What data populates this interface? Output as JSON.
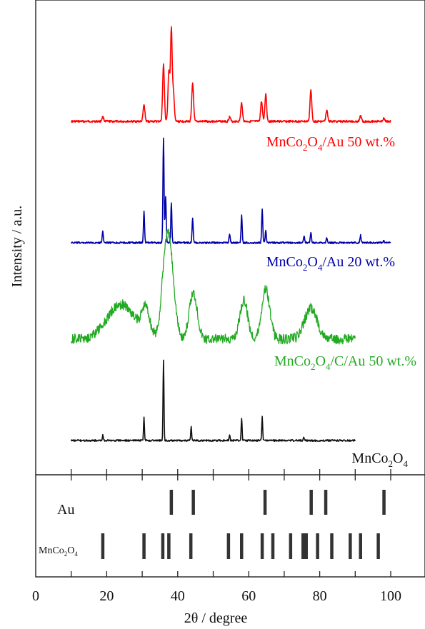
{
  "chart_data": {
    "type": "line",
    "title": "",
    "xlabel": "2θ / degree",
    "ylabel": "Intensity / a.u.",
    "xlim": [
      0,
      105
    ],
    "x_ticks": [
      "0",
      "20",
      "40",
      "60",
      "80",
      "100"
    ],
    "x_tick_values": [
      0,
      20,
      40,
      60,
      80,
      100
    ],
    "minor_tick_values": [
      10,
      20,
      30,
      40,
      50,
      60,
      70,
      80,
      90,
      100
    ],
    "series": [
      {
        "name": "MnCo2O4/Au 50 wt.%",
        "label_parts": [
          [
            "MnCo",
            "n"
          ],
          [
            "2",
            "s"
          ],
          [
            "O",
            "n"
          ],
          [
            "4",
            "s"
          ],
          [
            "/Au 50 wt.%",
            "n"
          ]
        ],
        "color": "#ff0000",
        "x_range": [
          10,
          100
        ],
        "peaks": [
          [
            18.9,
            0.05
          ],
          [
            30.5,
            0.18
          ],
          [
            36.0,
            0.62
          ],
          [
            37.5,
            0.55
          ],
          [
            38.2,
            1.0
          ],
          [
            38.8,
            0.3
          ],
          [
            44.2,
            0.42
          ],
          [
            54.6,
            0.05
          ],
          [
            58.0,
            0.2
          ],
          [
            63.6,
            0.22
          ],
          [
            64.8,
            0.3
          ],
          [
            77.5,
            0.34
          ],
          [
            82.0,
            0.12
          ],
          [
            91.5,
            0.06
          ],
          [
            98.0,
            0.03
          ]
        ]
      },
      {
        "name": "MnCo2O4/Au 20 wt.%",
        "label_parts": [
          [
            "MnCo",
            "n"
          ],
          [
            "2",
            "s"
          ],
          [
            "O",
            "n"
          ],
          [
            "4",
            "s"
          ],
          [
            "/Au 20 wt.%",
            "n"
          ]
        ],
        "color": "#0000aa",
        "x_range": [
          10,
          100
        ],
        "peaks": [
          [
            18.9,
            0.11
          ],
          [
            30.5,
            0.3
          ],
          [
            36.0,
            1.0
          ],
          [
            36.6,
            0.45
          ],
          [
            38.2,
            0.38
          ],
          [
            44.2,
            0.23
          ],
          [
            54.6,
            0.09
          ],
          [
            58.0,
            0.26
          ],
          [
            63.8,
            0.32
          ],
          [
            64.8,
            0.12
          ],
          [
            75.6,
            0.07
          ],
          [
            77.5,
            0.1
          ],
          [
            82.0,
            0.05
          ],
          [
            91.5,
            0.07
          ],
          [
            98.0,
            0.02
          ]
        ]
      },
      {
        "name": "MnCo2O4/C/Au 50 wt.%",
        "label_parts": [
          [
            "MnCo",
            "n"
          ],
          [
            "2",
            "s"
          ],
          [
            "O",
            "n"
          ],
          [
            "4",
            "s"
          ],
          [
            "/C/Au 50 wt.%",
            "n"
          ]
        ],
        "color": "#22aa22",
        "x_range": [
          10,
          90
        ],
        "peaks": [
          [
            24.0,
            0.45
          ],
          [
            31.0,
            0.35
          ],
          [
            36.6,
            1.0
          ],
          [
            38.2,
            0.75
          ],
          [
            44.4,
            0.6
          ],
          [
            58.6,
            0.5
          ],
          [
            64.8,
            0.66
          ],
          [
            77.5,
            0.4
          ]
        ]
      },
      {
        "name": "MnCo2O4",
        "label_parts": [
          [
            "MnCo",
            "n"
          ],
          [
            "2",
            "s"
          ],
          [
            "O",
            "n"
          ],
          [
            "4",
            "s"
          ]
        ],
        "color": "#111111",
        "x_range": [
          10,
          90
        ],
        "peaks": [
          [
            18.9,
            0.07
          ],
          [
            30.5,
            0.28
          ],
          [
            36.0,
            1.0
          ],
          [
            43.8,
            0.17
          ],
          [
            54.6,
            0.07
          ],
          [
            58.0,
            0.28
          ],
          [
            63.8,
            0.3
          ],
          [
            75.5,
            0.04
          ]
        ]
      }
    ],
    "reference_sets": [
      {
        "name": "Au",
        "label_parts": [
          [
            "Au",
            "n"
          ]
        ],
        "positions": [
          38.2,
          44.4,
          64.6,
          77.6,
          81.7,
          98.1
        ]
      },
      {
        "name": "MnCo2O4",
        "label_parts": [
          [
            "MnCo",
            "n"
          ],
          [
            "2",
            "s"
          ],
          [
            "O",
            "n"
          ],
          [
            "4",
            "s"
          ]
        ],
        "positions": [
          18.9,
          30.5,
          35.8,
          37.5,
          43.7,
          54.3,
          58.0,
          63.8,
          66.8,
          71.8,
          75.3,
          76.2,
          79.4,
          83.4,
          88.6,
          91.5,
          96.5
        ]
      }
    ]
  }
}
